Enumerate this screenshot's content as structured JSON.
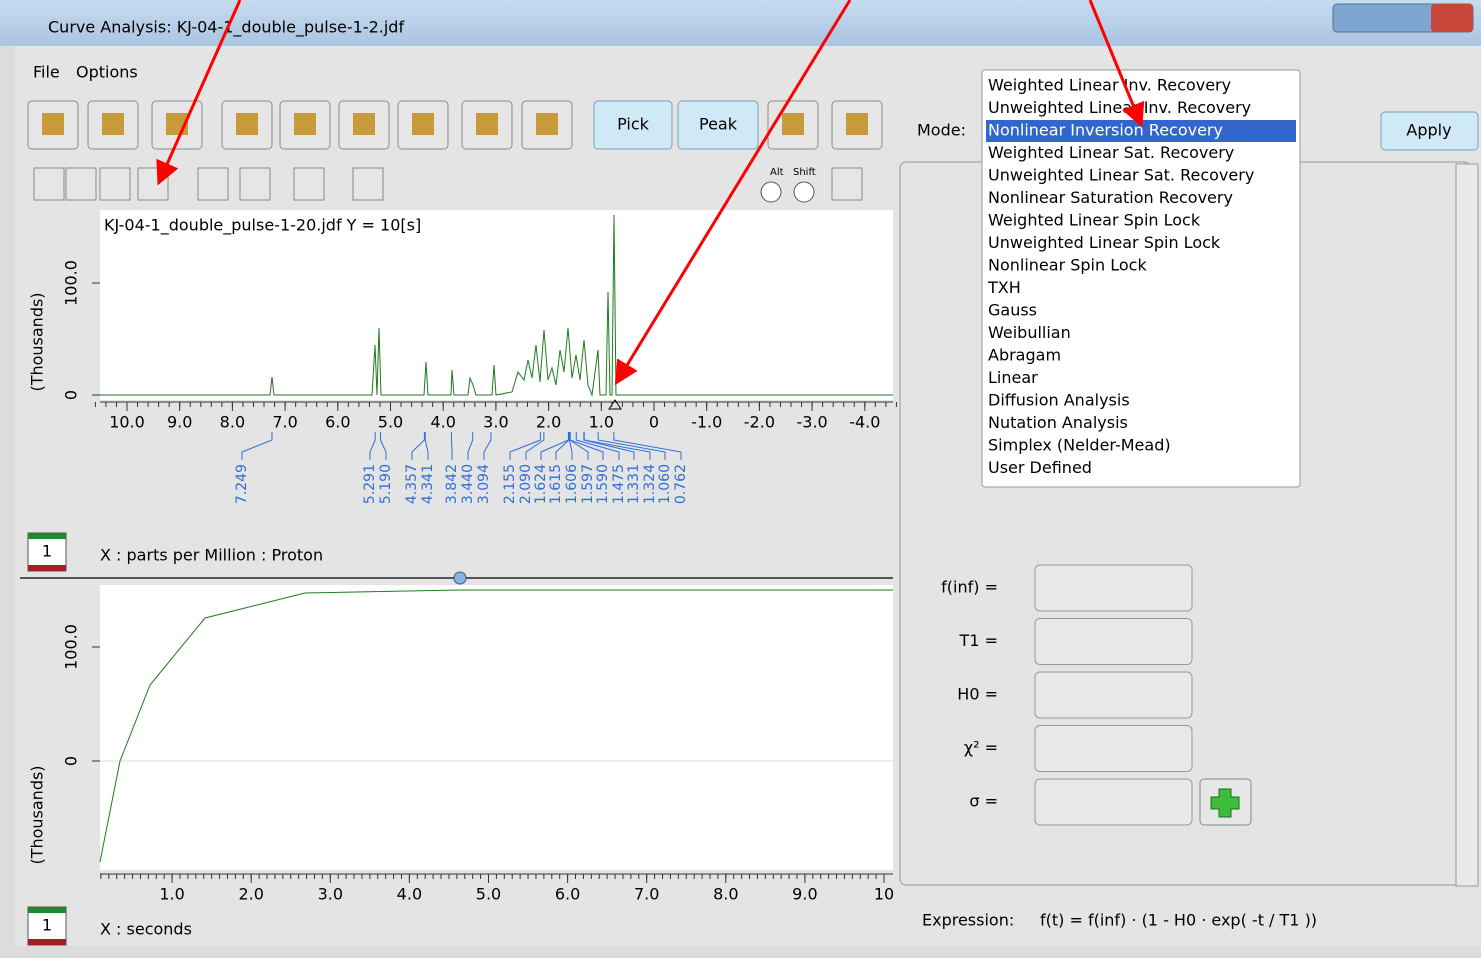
{
  "window": {
    "title": "Curve Analysis: KJ-04-1_double_pulse-1-2.jdf"
  },
  "menu": [
    "File",
    "Options"
  ],
  "toolbar": {
    "pick": "Pick",
    "peak": "Peak",
    "alt": "Alt",
    "shift": "Shift"
  },
  "spectrum": {
    "title": "KJ-04-1_double_pulse-1-20.jdf Y = 10[s]",
    "y_label": "(Thousands)",
    "y_ticks": [
      "100.0",
      "0"
    ],
    "x_ticks": [
      "10.0",
      "9.0",
      "8.0",
      "7.0",
      "6.0",
      "5.0",
      "4.0",
      "3.0",
      "2.0",
      "1.0",
      "0",
      "-1.0",
      "-2.0",
      "-3.0",
      "-4.0"
    ],
    "x_label": "X : parts per Million : Proton",
    "peak_labels": [
      "7.249",
      "5.291",
      "5.190",
      "4.357",
      "4.341",
      "3.842",
      "3.440",
      "3.094",
      "2.155",
      "2.090",
      "1.624",
      "1.615",
      "1.606",
      "1.597",
      "1.590",
      "1.475",
      "1.331",
      "1.324",
      "1.060",
      "0.762"
    ],
    "badge": "1"
  },
  "decay": {
    "y_label": "(Thousands)",
    "y_ticks": [
      "100.0",
      "0"
    ],
    "x_ticks": [
      "1.0",
      "2.0",
      "3.0",
      "4.0",
      "5.0",
      "6.0",
      "7.0",
      "8.0",
      "9.0",
      "10"
    ],
    "x_label": "X : seconds",
    "badge": "1"
  },
  "mode": {
    "label": "Mode:",
    "apply": "Apply",
    "selected": 2,
    "options": [
      "Weighted Linear Inv. Recovery",
      "Unweighted Linear Inv. Recovery",
      "Nonlinear Inversion Recovery",
      "Weighted Linear Sat. Recovery",
      "Unweighted Linear Sat. Recovery",
      "Nonlinear Saturation Recovery",
      "Weighted Linear Spin Lock",
      "Unweighted Linear Spin Lock",
      "Nonlinear Spin Lock",
      "TXH",
      "Gauss",
      "Weibullian",
      "Abragam",
      "Linear",
      "Diffusion Analysis",
      "Nutation Analysis",
      "Simplex (Nelder-Mead)",
      "User Defined"
    ]
  },
  "fields": [
    "f(inf) =",
    "T1 =",
    "H0 =",
    "χ² =",
    "σ ="
  ],
  "expression": {
    "label": "Expression:",
    "formula": "f(t) = f(inf) · (1 - H0 · exp( -t / T1 ))"
  }
}
